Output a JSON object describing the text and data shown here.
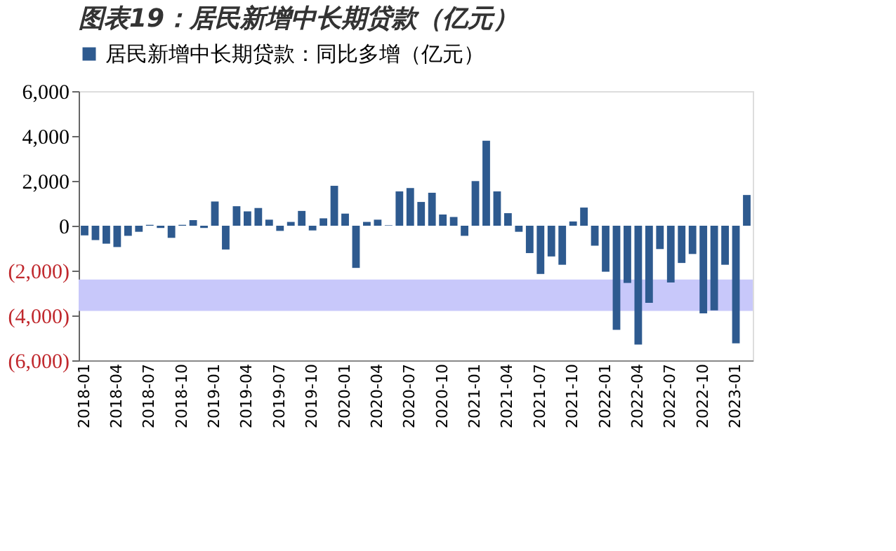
{
  "chart_data": {
    "type": "bar",
    "title": "图表19：居民新增中长期贷款（亿元）",
    "categories": [
      "2018-01",
      null,
      null,
      "2018-04",
      null,
      null,
      "2018-07",
      null,
      null,
      "2018-10",
      null,
      null,
      "2019-01",
      null,
      null,
      "2019-04",
      null,
      null,
      "2019-07",
      null,
      null,
      "2019-10",
      null,
      null,
      "2020-01",
      null,
      null,
      "2020-04",
      null,
      null,
      "2020-07",
      null,
      null,
      "2020-10",
      null,
      null,
      "2021-01",
      null,
      null,
      "2021-04",
      null,
      null,
      "2021-07",
      null,
      null,
      "2021-10",
      null,
      null,
      "2022-01",
      null,
      null,
      "2022-04",
      null,
      null,
      "2022-07",
      null,
      null,
      "2022-10",
      null,
      null,
      "2023-01",
      null
    ],
    "series": [
      {
        "name": "居民新增中长期贷款：同比多增（亿元）",
        "color": "#2e5a8f",
        "values": [
          -430,
          -640,
          -800,
          -950,
          -450,
          -270,
          40,
          -100,
          -540,
          40,
          250,
          -100,
          1080,
          -1060,
          870,
          640,
          790,
          270,
          -230,
          170,
          660,
          -210,
          330,
          1780,
          540,
          -1880,
          170,
          270,
          20,
          1530,
          1680,
          1060,
          1470,
          500,
          390,
          -450,
          1990,
          3790,
          1530,
          560,
          -270,
          -1220,
          -2150,
          -1370,
          -1740,
          190,
          810,
          -890,
          -2050,
          -4640,
          -2550,
          -5300,
          -3440,
          -1040,
          -2530,
          -1660,
          -1260,
          -3910,
          -3770,
          -1740,
          -5240,
          1370
        ]
      }
    ],
    "ylim": [
      -6000,
      6000
    ],
    "yticks": [
      {
        "value": 6000,
        "label": "6,000"
      },
      {
        "value": 4000,
        "label": "4,000"
      },
      {
        "value": 2000,
        "label": "2,000"
      },
      0,
      {
        "value": -2000,
        "label": "(2,000)"
      },
      {
        "value": -4000,
        "label": "(4,000)"
      },
      {
        "value": -6000,
        "label": "(6,000)"
      }
    ],
    "bands": [
      {
        "axis": "y",
        "from": -2400,
        "to": -3800,
        "color": "#c8c8fa"
      }
    ],
    "legend": "top",
    "grid": false
  }
}
